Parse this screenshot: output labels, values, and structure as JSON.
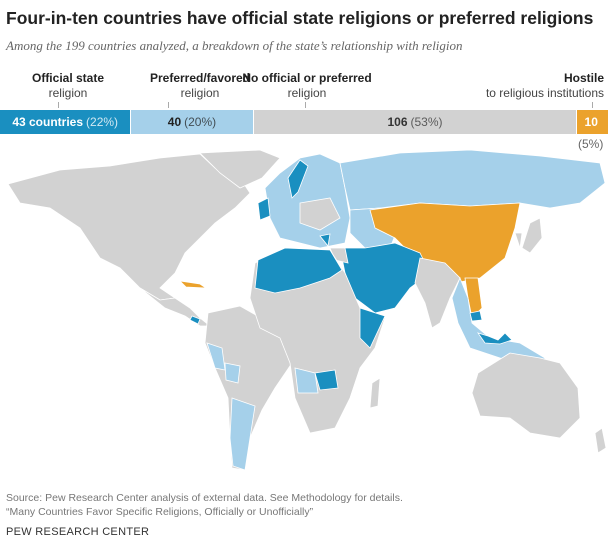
{
  "title": "Four-in-ten countries have official state religions or preferred religions",
  "subtitle": "Among the 199 countries analyzed, a breakdown of the state’s relationship with religion",
  "colors": {
    "official": "#1a8fc0",
    "preferred": "#a5d0ea",
    "none": "#d2d2d2",
    "hostile": "#eba22c"
  },
  "chart_data": {
    "type": "stacked-bar-with-map",
    "total": 199,
    "categories": [
      {
        "key": "official",
        "heading": "Official state",
        "subheading": "religion",
        "count_label": "43 countries",
        "count": 43,
        "percent": "(22%)"
      },
      {
        "key": "preferred",
        "heading": "Preferred/favored",
        "subheading": "religion",
        "count_label": "40",
        "count": 40,
        "percent": "(20%)"
      },
      {
        "key": "none",
        "heading": "No official or preferred",
        "subheading": "religion",
        "count_label": "106",
        "count": 106,
        "percent": "(53%)"
      },
      {
        "key": "hostile",
        "heading": "Hostile",
        "subheading": "to religious institutions",
        "count_label": "10",
        "count": 10,
        "percent": "(5%)"
      }
    ]
  },
  "source": "Source: Pew Research Center analysis of external data. See Methodology for details.",
  "report": "“Many Countries Favor Specific Religions, Officially or Unofficially”",
  "footer": "PEW RESEARCH CENTER"
}
